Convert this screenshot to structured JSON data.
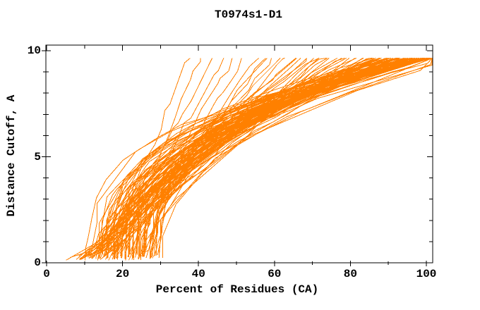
{
  "window": {
    "background": "#ffffff"
  },
  "chart": {
    "title": "T0974s1-D1",
    "x_axis": {
      "label": "Percent of Residues (CA)",
      "major_ticks": [
        0,
        20,
        40,
        60,
        80,
        100
      ],
      "minor_step": 10
    },
    "y_axis": {
      "label": "Distance Cutoff, A",
      "major_ticks": [
        0,
        5,
        10
      ],
      "minor_step": 1
    },
    "line_color": "#ff8000",
    "frame_color": "#000000",
    "text_color": "#000000"
  },
  "chart_data": {
    "type": "line",
    "title": "T0974s1-D1",
    "xlabel": "Percent of Residues (CA)",
    "ylabel": "Distance Cutoff, A",
    "xlim": [
      0,
      101.5
    ],
    "ylim": [
      0,
      10.27
    ],
    "xticks": [
      0,
      20,
      40,
      60,
      80,
      100
    ],
    "xtick_minor_step": 10,
    "yticks": [
      0,
      5,
      10
    ],
    "ytick_minor_step": 1,
    "grid": false,
    "legend": false,
    "line_color": "#ff8000",
    "description": "Cumulative per-model curves: percent of CA residues (x) under distance cutoff (y). Dense band below ~2A widening to the right; fan of curves rising to cutoff ~9.65A between 37% and 100% residues.",
    "series_format": "each curve = one model: [x_percent_at_first_point, x_percent_at_cutoff_9.65A, shape_exponent]",
    "cutoff_max": 9.65,
    "start_cutoff": 0.2,
    "seed": 7,
    "curves": [
      [
        6,
        37,
        0.6
      ],
      [
        7,
        40,
        0.62
      ],
      [
        8,
        43,
        0.7
      ],
      [
        6.5,
        46,
        0.68
      ],
      [
        9,
        49,
        0.75
      ],
      [
        10,
        52,
        0.8
      ],
      [
        8,
        55,
        0.72
      ],
      [
        11,
        57,
        0.85
      ],
      [
        9,
        58,
        0.9
      ],
      [
        12,
        60,
        1.0
      ],
      [
        10,
        62,
        1.05
      ],
      [
        14,
        63,
        0.95
      ],
      [
        11,
        65,
        1.1
      ],
      [
        13,
        66,
        1.2
      ],
      [
        9,
        67,
        1.0
      ],
      [
        15,
        68,
        1.15
      ],
      [
        12,
        69,
        1.25
      ],
      [
        16,
        70,
        1.05
      ],
      [
        10,
        71,
        1.3
      ],
      [
        14,
        72,
        1.1
      ],
      [
        11,
        73,
        1.2
      ],
      [
        17,
        74,
        1.35
      ],
      [
        13,
        75,
        1.15
      ],
      [
        18,
        76,
        1.4
      ],
      [
        12,
        77,
        1.25
      ],
      [
        15,
        78,
        1.3
      ],
      [
        10,
        79,
        1.45
      ],
      [
        16,
        80,
        1.2
      ],
      [
        13,
        81,
        1.5
      ],
      [
        19,
        82,
        1.35
      ],
      [
        11,
        83,
        1.4
      ],
      [
        17,
        84,
        1.55
      ],
      [
        12,
        85,
        1.5
      ],
      [
        20,
        85,
        1.7
      ],
      [
        14,
        86,
        1.6
      ],
      [
        22,
        87,
        1.8
      ],
      [
        13,
        87,
        1.55
      ],
      [
        18,
        88,
        1.9
      ],
      [
        15,
        88,
        1.65
      ],
      [
        24,
        89,
        2.0
      ],
      [
        12,
        89,
        1.7
      ],
      [
        19,
        90,
        1.85
      ],
      [
        16,
        90,
        2.1
      ],
      [
        25,
        91,
        1.75
      ],
      [
        13,
        91,
        1.95
      ],
      [
        21,
        92,
        2.2
      ],
      [
        17,
        92,
        1.8
      ],
      [
        26,
        93,
        2.05
      ],
      [
        14,
        93,
        2.3
      ],
      [
        22,
        94,
        1.9
      ],
      [
        18,
        94,
        2.15
      ],
      [
        27,
        95,
        2.4
      ],
      [
        15,
        95,
        2.0
      ],
      [
        23,
        95,
        2.25
      ],
      [
        19,
        96,
        1.95
      ],
      [
        28,
        96,
        2.5
      ],
      [
        16,
        96,
        2.1
      ],
      [
        24,
        97,
        2.35
      ],
      [
        20,
        97,
        2.6
      ],
      [
        29,
        97,
        2.2
      ],
      [
        17,
        98,
        2.45
      ],
      [
        25,
        98,
        2.7
      ],
      [
        14,
        99,
        2.3
      ],
      [
        22,
        99,
        2.6
      ],
      [
        18,
        99,
        2.9
      ],
      [
        26,
        100,
        2.4
      ],
      [
        15,
        100,
        2.75
      ],
      [
        23,
        100,
        3.0
      ],
      [
        19,
        100,
        2.5
      ],
      [
        27,
        100,
        2.85
      ],
      [
        16,
        100.5,
        2.6
      ],
      [
        24,
        100.5,
        3.1
      ],
      [
        20,
        100.5,
        2.7
      ],
      [
        28,
        101,
        2.95
      ],
      [
        17,
        101,
        2.55
      ],
      [
        25,
        101,
        3.2
      ],
      [
        21,
        101,
        2.8
      ],
      [
        29,
        101,
        3.0
      ],
      [
        13,
        101,
        2.65
      ],
      [
        30,
        101,
        2.9
      ],
      [
        12,
        100,
        3.3
      ],
      [
        11,
        99,
        3.15
      ],
      [
        18,
        86,
        2.6
      ],
      [
        21,
        88,
        2.8
      ],
      [
        24,
        90,
        2.5
      ],
      [
        16,
        92,
        2.9
      ],
      [
        27,
        94,
        2.7
      ],
      [
        19,
        96,
        3.1
      ],
      [
        22,
        98,
        2.6
      ],
      [
        25,
        100,
        3.0
      ],
      [
        14,
        91,
        2.75
      ],
      [
        28,
        93,
        2.55
      ],
      [
        17,
        95,
        3.2
      ],
      [
        20,
        97,
        2.85
      ],
      [
        23,
        99,
        2.65
      ],
      [
        26,
        101,
        3.05
      ],
      [
        15,
        89,
        2.95
      ],
      [
        29,
        90,
        2.45
      ],
      [
        18,
        94,
        3.15
      ],
      [
        21,
        96,
        2.7
      ],
      [
        24,
        98,
        2.9
      ],
      [
        16,
        100,
        3.25
      ],
      [
        27,
        101,
        2.75
      ],
      [
        19,
        87,
        2.5
      ],
      [
        22,
        91,
        3.0
      ],
      [
        25,
        95,
        2.6
      ],
      [
        13,
        97,
        2.8
      ],
      [
        28,
        99,
        3.1
      ],
      [
        20,
        101,
        2.95
      ],
      [
        23,
        88,
        2.7
      ],
      [
        26,
        92,
        2.85
      ],
      [
        17,
        99,
        3.3
      ],
      [
        20,
        104,
        2.4
      ],
      [
        24,
        107,
        2.2
      ],
      [
        28,
        103,
        2.6
      ],
      [
        22,
        106,
        2.8
      ],
      [
        26,
        109,
        2.3
      ],
      [
        18,
        105,
        3.0
      ],
      [
        30,
        108,
        2.5
      ],
      [
        25,
        110,
        2.7
      ]
    ]
  }
}
